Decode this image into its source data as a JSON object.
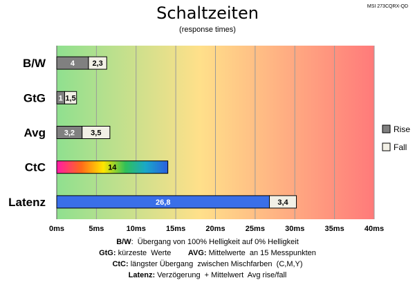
{
  "corner_label": "MSI 273CQRX-QD",
  "chart_data": {
    "type": "bar",
    "orientation": "horizontal",
    "stacked": true,
    "title": "Schaltzeiten",
    "subtitle": "(response times)",
    "categories": [
      "B/W",
      "GtG",
      "Avg",
      "CtC",
      "Latenz"
    ],
    "series": [
      {
        "name": "Rise",
        "values": [
          4,
          1,
          3.2,
          14,
          26.8
        ],
        "labels": [
          "4",
          "1",
          "3,2",
          "14",
          "26,8"
        ]
      },
      {
        "name": "Fall",
        "values": [
          2.3,
          1.5,
          3.5,
          0,
          3.4
        ],
        "labels": [
          "2,3",
          "1,5",
          "3,5",
          "",
          "3,4"
        ]
      }
    ],
    "xlim": [
      0,
      40
    ],
    "xticks": [
      0,
      5,
      10,
      15,
      20,
      25,
      30,
      35,
      40
    ],
    "xtick_labels": [
      "0ms",
      "5ms",
      "10ms",
      "15ms",
      "20ms",
      "25ms",
      "30ms",
      "35ms",
      "40ms"
    ],
    "grid": true,
    "legend_position": "right",
    "colors": {
      "rise": "#808080",
      "fall": "#f2f0e6",
      "latenz": "#3a6fe8",
      "bg_start": "#8fe08f",
      "bg_mid": "#ffe08a",
      "bg_end": "#ff7a7a"
    }
  },
  "footnotes": [
    [
      {
        "b": "B/W",
        "t": ":  Übergang von 100% Helligkeit auf 0% Helligkeit"
      }
    ],
    [
      {
        "b": "GtG:",
        "t": " kürzeste  Werte        "
      },
      {
        "b": "AVG:",
        "t": " Mittelwerte  an 15 Messpunkten"
      }
    ],
    [
      {
        "b": "CtC:",
        "t": " längster Übergang  zwischen Mischfarben  (C,M,Y)"
      }
    ],
    [
      {
        "b": "Latenz:",
        "t": " Verzögerung  + Mittelwert  Avg rise/fall"
      }
    ]
  ]
}
